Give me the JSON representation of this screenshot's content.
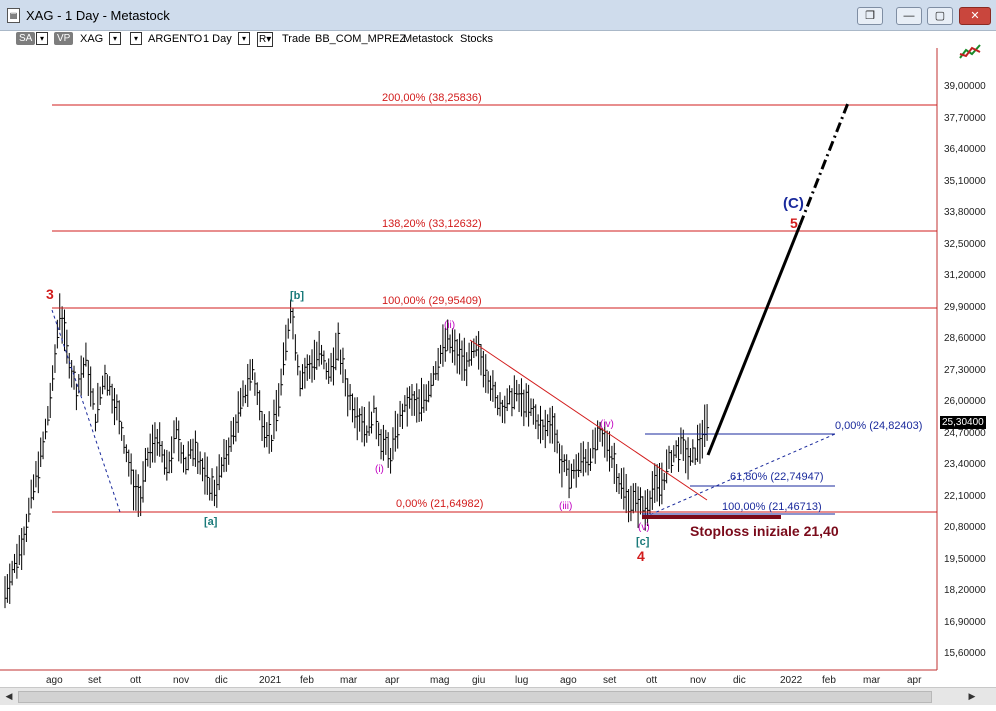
{
  "window": {
    "title": "XAG - 1 Day - Metastock"
  },
  "toolbar": {
    "sa_label": "SA",
    "vp_label": "VP",
    "symbol": "XAG",
    "instrument": "ARGENTO",
    "period": "1 Day",
    "r_label": "R",
    "trade_label": "Trade",
    "template": "BB_COM_MPREZ",
    "source": "Metastock",
    "category": "Stocks"
  },
  "y_axis": {
    "ticks": [
      "39,00000",
      "37,70000",
      "36,40000",
      "35,10000",
      "33,80000",
      "32,50000",
      "31,20000",
      "29,90000",
      "28,60000",
      "27,30000",
      "26,00000",
      "24,70000",
      "23,40000",
      "22,10000",
      "20,80000",
      "19,50000",
      "18,20000",
      "16,90000",
      "15,60000"
    ],
    "last_price": "25,30400"
  },
  "x_axis": {
    "ticks": [
      "ago",
      "set",
      "ott",
      "nov",
      "dic",
      "2021",
      "feb",
      "mar",
      "apr",
      "mag",
      "giu",
      "lug",
      "ago",
      "set",
      "ott",
      "nov",
      "dic",
      "2022",
      "feb",
      "mar",
      "apr"
    ]
  },
  "annotations": {
    "fib_200": "200,00% (38,25836)",
    "fib_138": "138,20% (33,12632)",
    "fib_100_top": "100,00% (29,95409)",
    "fib_0_low": "0,00% (21,64982)",
    "fib_0_right": "0,00% (24,82403)",
    "fib_618": "61,80% (22,74947)",
    "fib_100_right": "100,00% (21,46713)",
    "stoploss": "Stoploss iniziale 21,40"
  },
  "waves": {
    "w3": "3",
    "wb": "[b]",
    "wa": "[a]",
    "wi": "(i)",
    "wii": "(ii)",
    "wiii": "(iii)",
    "wiv": "(iv)",
    "wv": "(v)",
    "wc": "[c]",
    "w4": "4",
    "w5": "5",
    "wC": "(C)"
  },
  "colors": {
    "fib_line": "#d21c1c",
    "trend_blue": "#1a2a9c",
    "wave_magenta": "#c000c0",
    "wave_teal": "#1a7a7a",
    "wave_red": "#d21c1c",
    "bars": "#000000"
  },
  "chart_data": {
    "type": "ohlc",
    "y_range": [
      15.0,
      40.0
    ],
    "price_path": [
      [
        0,
        18.2
      ],
      [
        4,
        19.3
      ],
      [
        8,
        20.5
      ],
      [
        12,
        22.5
      ],
      [
        16,
        24.2
      ],
      [
        20,
        26.8
      ],
      [
        23,
        29.9
      ],
      [
        26,
        28.2
      ],
      [
        30,
        26.5
      ],
      [
        34,
        27.8
      ],
      [
        38,
        25.4
      ],
      [
        42,
        27.2
      ],
      [
        46,
        26.1
      ],
      [
        50,
        24.5
      ],
      [
        54,
        22.6
      ],
      [
        57,
        22.0
      ],
      [
        60,
        23.8
      ],
      [
        64,
        24.6
      ],
      [
        68,
        23.2
      ],
      [
        72,
        24.8
      ],
      [
        76,
        23.5
      ],
      [
        80,
        24.3
      ],
      [
        84,
        22.9
      ],
      [
        88,
        22.4
      ],
      [
        92,
        23.6
      ],
      [
        96,
        24.8
      ],
      [
        100,
        26.2
      ],
      [
        104,
        27.4
      ],
      [
        108,
        25.3
      ],
      [
        112,
        24.5
      ],
      [
        116,
        26.8
      ],
      [
        120,
        30.0
      ],
      [
        124,
        27.0
      ],
      [
        128,
        27.5
      ],
      [
        132,
        28.1
      ],
      [
        136,
        27.2
      ],
      [
        140,
        28.3
      ],
      [
        144,
        26.4
      ],
      [
        148,
        25.6
      ],
      [
        152,
        24.9
      ],
      [
        155,
        25.7
      ],
      [
        158,
        24.5
      ],
      [
        162,
        23.8
      ],
      [
        166,
        25.4
      ],
      [
        170,
        26.1
      ],
      [
        174,
        25.8
      ],
      [
        178,
        26.6
      ],
      [
        182,
        27.8
      ],
      [
        186,
        28.6
      ],
      [
        190,
        28.0
      ],
      [
        194,
        27.6
      ],
      [
        198,
        28.2
      ],
      [
        202,
        27.4
      ],
      [
        206,
        26.2
      ],
      [
        210,
        25.8
      ],
      [
        214,
        26.4
      ],
      [
        218,
        26.0
      ],
      [
        222,
        25.6
      ],
      [
        226,
        24.8
      ],
      [
        230,
        25.3
      ],
      [
        234,
        23.4
      ],
      [
        238,
        23.0
      ],
      [
        242,
        23.6
      ],
      [
        246,
        23.9
      ],
      [
        250,
        24.6
      ],
      [
        254,
        24.2
      ],
      [
        258,
        22.8
      ],
      [
        262,
        22.0
      ],
      [
        266,
        21.9
      ],
      [
        269,
        21.6
      ],
      [
        272,
        22.4
      ],
      [
        276,
        22.7
      ],
      [
        280,
        23.8
      ],
      [
        284,
        24.2
      ],
      [
        288,
        23.6
      ],
      [
        292,
        24.4
      ],
      [
        296,
        25.3
      ]
    ],
    "projection": [
      [
        296,
        24.0
      ],
      [
        322,
        32.8
      ],
      [
        336,
        38.2
      ]
    ]
  }
}
